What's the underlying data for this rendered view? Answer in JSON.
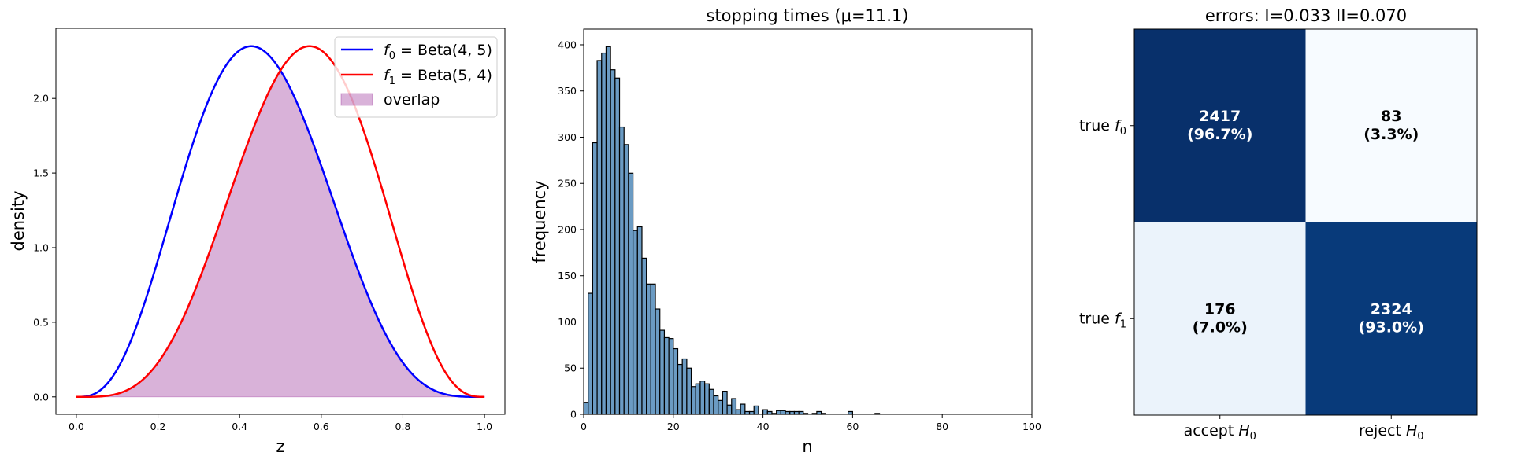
{
  "chart_data": [
    {
      "type": "line",
      "title": "",
      "xlabel": "z",
      "ylabel": "density",
      "xlim": [
        -0.05,
        1.05
      ],
      "ylim": [
        -0.117,
        2.47
      ],
      "xticks": [
        "0.0",
        "0.2",
        "0.4",
        "0.6",
        "0.8",
        "1.0"
      ],
      "yticks": [
        "0.0",
        "0.5",
        "1.0",
        "1.5",
        "2.0"
      ],
      "grid": false,
      "legend_placement": "upper right",
      "series": [
        {
          "name": "f0 = Beta(4, 5)",
          "name_main": "f",
          "name_sub": "0",
          "name_rest": " = Beta(4, 5)",
          "distribution": "beta",
          "a": 4,
          "b": 5,
          "color": "#0000ff"
        },
        {
          "name": "f1 = Beta(5, 4)",
          "name_main": "f",
          "name_sub": "1",
          "name_rest": " = Beta(5, 4)",
          "distribution": "beta",
          "a": 5,
          "b": 4,
          "color": "#ff0000"
        },
        {
          "name": "overlap",
          "kind": "fill",
          "definition": "min(f0, f1)",
          "color": "#800080",
          "alpha": 0.3
        }
      ]
    },
    {
      "type": "bar",
      "subtype": "histogram",
      "title": "stopping times (μ=11.1)",
      "xlabel": "n",
      "ylabel": "frequency",
      "xlim": [
        0,
        100
      ],
      "ylim": [
        0,
        417
      ],
      "xticks": [
        "0",
        "20",
        "40",
        "60",
        "80",
        "100"
      ],
      "yticks": [
        "0",
        "50",
        "100",
        "150",
        "200",
        "250",
        "300",
        "350",
        "400"
      ],
      "grid": false,
      "color": "#4682b4",
      "edgecolor": "#000000",
      "bin_width": 1,
      "bins": [
        0,
        1,
        2,
        3,
        4,
        5,
        6,
        7,
        8,
        9,
        10,
        11,
        12,
        13,
        14,
        15,
        16,
        17,
        18,
        19,
        20,
        21,
        22,
        23,
        24,
        25,
        26,
        27,
        28,
        29,
        30,
        31,
        32,
        33,
        34,
        35,
        36,
        37,
        38,
        39,
        40,
        41,
        42,
        43,
        44,
        45,
        46,
        47,
        48,
        49,
        50,
        51,
        52,
        53,
        54,
        55,
        56,
        57,
        58,
        59,
        60,
        61,
        62,
        63,
        64,
        65
      ],
      "values": [
        13,
        131,
        294,
        383,
        391,
        398,
        373,
        364,
        311,
        292,
        261,
        199,
        203,
        169,
        141,
        141,
        114,
        91,
        83,
        82,
        71,
        54,
        60,
        50,
        30,
        33,
        36,
        33,
        27,
        20,
        15,
        25,
        10,
        17,
        5,
        11,
        3,
        3,
        9,
        0,
        5,
        3,
        1,
        4,
        4,
        3,
        3,
        3,
        3,
        1,
        0,
        1,
        3,
        1,
        0,
        0,
        0,
        0,
        0,
        3,
        0,
        0,
        0,
        0,
        0,
        1
      ]
    },
    {
      "type": "heatmap",
      "title": "errors: I=0.033 II=0.070",
      "colormap": "Blues",
      "rows": [
        {
          "label_main": "true ",
          "label_var": "f",
          "label_sub": "0"
        },
        {
          "label_main": "true ",
          "label_var": "f",
          "label_sub": "1"
        }
      ],
      "columns": [
        {
          "label_main": "accept ",
          "label_var": "H",
          "label_sub": "0"
        },
        {
          "label_main": "reject ",
          "label_var": "H",
          "label_sub": "0"
        }
      ],
      "values": [
        [
          2417,
          83
        ],
        [
          176,
          2324
        ]
      ],
      "cell_text": [
        [
          {
            "count": "2417",
            "pct": "(96.7%)",
            "color": "#08306b",
            "text_color": "#ffffff"
          },
          {
            "count": "83",
            "pct": "(3.3%)",
            "color": "#f7fbff",
            "text_color": "#000000"
          }
        ],
        [
          {
            "count": "176",
            "pct": "(7.0%)",
            "color": "#ebf3fb",
            "text_color": "#000000"
          },
          {
            "count": "2324",
            "pct": "(93.0%)",
            "color": "#083a7a",
            "text_color": "#ffffff"
          }
        ]
      ]
    }
  ]
}
